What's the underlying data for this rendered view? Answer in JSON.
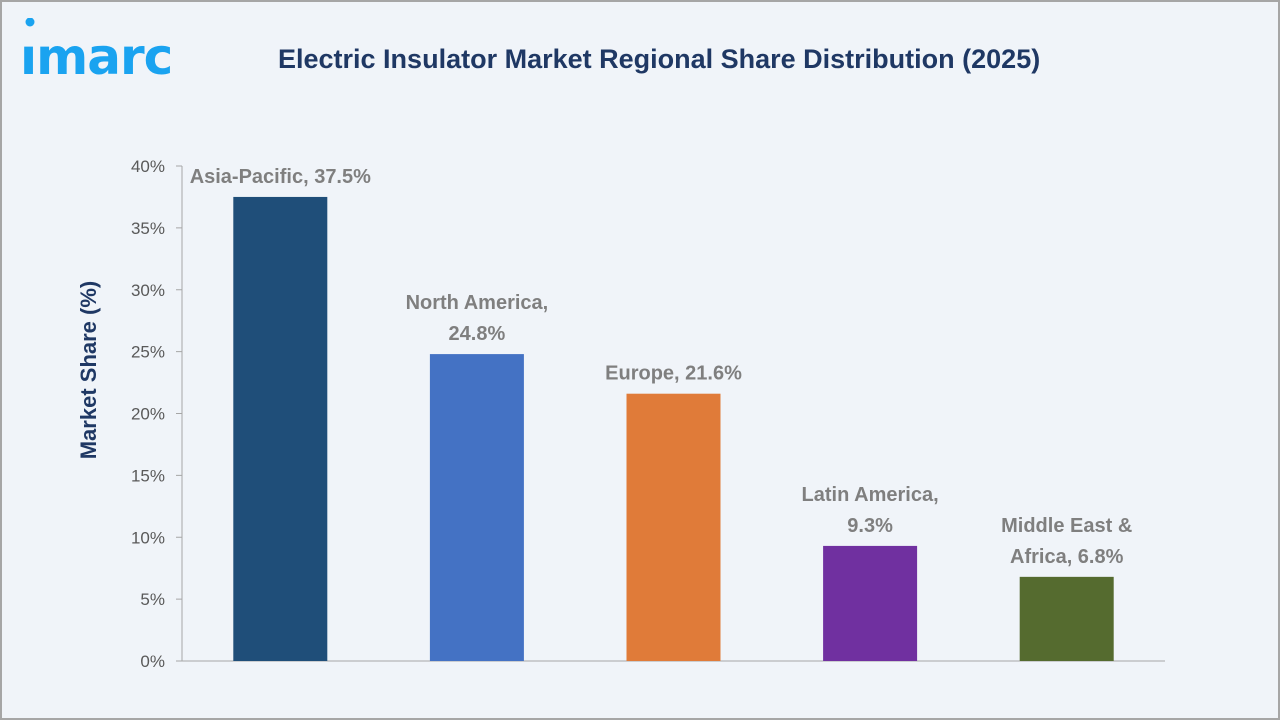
{
  "logo": {
    "text": "imarc",
    "color": "#1aa3f0"
  },
  "chart_data": {
    "type": "bar",
    "title": "Electric Insulator Market Regional Share Distribution (2025)",
    "ylabel": "Market Share (%)",
    "xlabel": "",
    "ylim": [
      0,
      40
    ],
    "yticks": [
      "0%",
      "5%",
      "10%",
      "15%",
      "20%",
      "25%",
      "30%",
      "35%",
      "40%"
    ],
    "grid": false,
    "categories": [
      "Asia-Pacific",
      "North America",
      "Europe",
      "Latin America",
      "Middle East & Africa"
    ],
    "values": [
      37.5,
      24.8,
      21.6,
      9.3,
      6.8
    ],
    "data_labels": [
      [
        "Asia-Pacific, 37.5%"
      ],
      [
        "North America,",
        "24.8%"
      ],
      [
        "Europe, 21.6%"
      ],
      [
        "Latin America,",
        "9.3%"
      ],
      [
        "Middle East &",
        "Africa, 6.8%"
      ]
    ],
    "colors": [
      "#1f4e79",
      "#4472c4",
      "#e07b39",
      "#7030a0",
      "#556b2f"
    ]
  }
}
